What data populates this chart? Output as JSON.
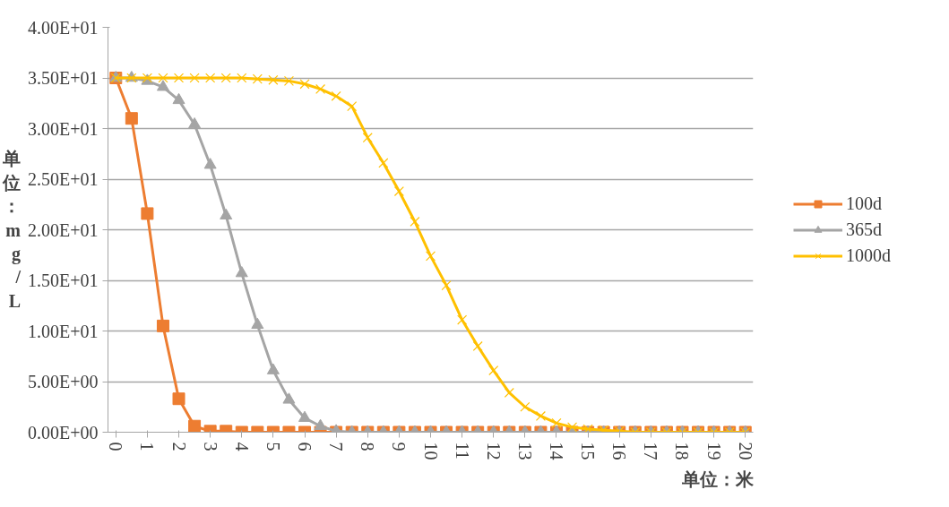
{
  "chart_data": {
    "type": "line",
    "xlabel": "单位：米",
    "ylabel": "单位：mg/L",
    "x": [
      0,
      0.5,
      1,
      1.5,
      2,
      2.5,
      3,
      3.5,
      4,
      4.5,
      5,
      5.5,
      6,
      6.5,
      7,
      7.5,
      8,
      8.5,
      9,
      9.5,
      10,
      10.5,
      11,
      11.5,
      12,
      12.5,
      13,
      13.5,
      14,
      14.5,
      15,
      15.5,
      16,
      16.5,
      17,
      17.5,
      18,
      18.5,
      19,
      19.5,
      20
    ],
    "xlim": [
      -0.25,
      20.25
    ],
    "xticks": [
      0,
      1,
      2,
      3,
      4,
      5,
      6,
      7,
      8,
      9,
      10,
      11,
      12,
      13,
      14,
      15,
      16,
      17,
      18,
      19,
      20
    ],
    "ylim": [
      0,
      40
    ],
    "yticks": [
      {
        "value": 0,
        "label": "0.00E+00"
      },
      {
        "value": 5,
        "label": "5.00E+00"
      },
      {
        "value": 10,
        "label": "1.00E+01"
      },
      {
        "value": 15,
        "label": "1.50E+01"
      },
      {
        "value": 20,
        "label": "2.00E+01"
      },
      {
        "value": 25,
        "label": "2.50E+01"
      },
      {
        "value": 30,
        "label": "3.00E+01"
      },
      {
        "value": 35,
        "label": "3.50E+01"
      },
      {
        "value": 40,
        "label": "4.00E+01"
      }
    ],
    "grid": "y",
    "legend": "right",
    "series": [
      {
        "name": "100d",
        "color": "#ed7d31",
        "marker": "square",
        "values": [
          35,
          31,
          21.6,
          10.5,
          3.3,
          0.6,
          0.1,
          0.1,
          0,
          0,
          0,
          0,
          0,
          0,
          0,
          0,
          0,
          0,
          0,
          0,
          0,
          0,
          0,
          0,
          0,
          0,
          0,
          0,
          0,
          0,
          0,
          0,
          0,
          0,
          0,
          0,
          0,
          0,
          0,
          0,
          0
        ]
      },
      {
        "name": "365d",
        "color": "#a5a5a5",
        "marker": "triangle",
        "values": [
          35,
          35,
          34.7,
          34.1,
          32.8,
          30.4,
          26.4,
          21.4,
          15.7,
          10.6,
          6.1,
          3.2,
          1.4,
          0.6,
          0.1,
          0,
          0,
          0,
          0,
          0,
          0,
          0,
          0,
          0,
          0,
          0,
          0,
          0,
          0,
          0,
          0,
          0,
          0,
          0,
          0,
          0,
          0,
          0,
          0,
          0,
          0
        ]
      },
      {
        "name": "1000d",
        "color": "#ffc000",
        "marker": "cross",
        "values": [
          35,
          35,
          35,
          35,
          35,
          35,
          35,
          35,
          35,
          34.9,
          34.8,
          34.7,
          34.4,
          33.9,
          33.2,
          32.2,
          29.1,
          26.6,
          23.8,
          20.8,
          17.4,
          14.5,
          11.1,
          8.5,
          6.1,
          3.9,
          2.5,
          1.6,
          0.9,
          0.5,
          0.3,
          0.2,
          0.1,
          0,
          0,
          0,
          0,
          0,
          0,
          0,
          0
        ]
      }
    ]
  }
}
